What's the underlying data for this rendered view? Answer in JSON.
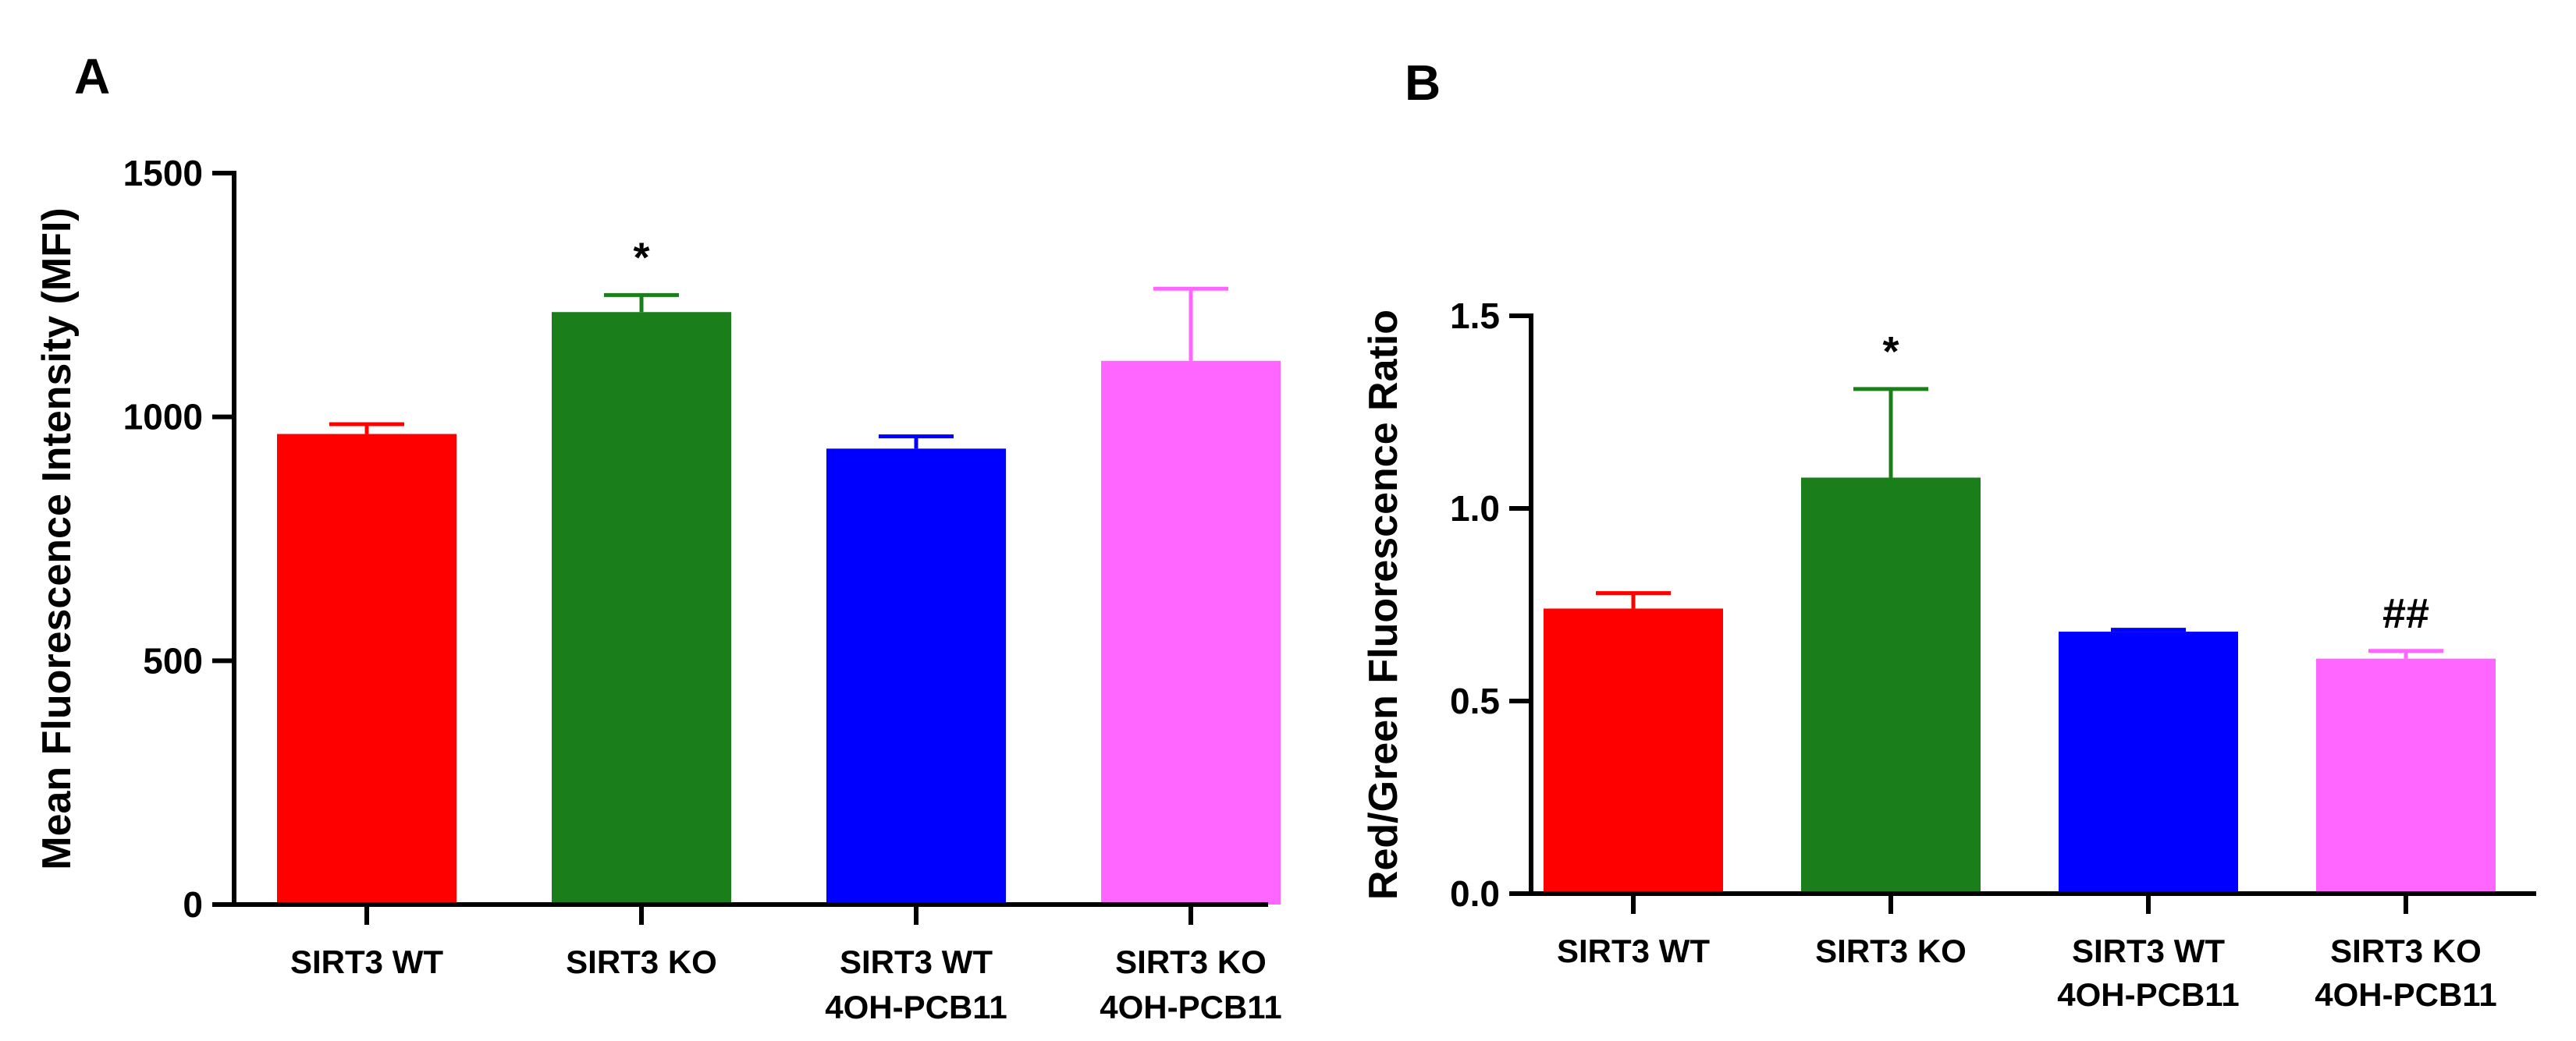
{
  "chart_data": [
    {
      "type": "bar",
      "panel_label": "A",
      "ylabel": "Mean Fluorescence Intensity (MFI)",
      "xlabel": "",
      "ylim": [
        0,
        1500
      ],
      "yticks": [
        "0",
        "500",
        "1000",
        "1500"
      ],
      "grid": false,
      "categories": [
        [
          "SIRT3 WT"
        ],
        [
          "SIRT3 KO"
        ],
        [
          "SIRT3 WT",
          "4OH-PCB11"
        ],
        [
          "SIRT3 KO",
          "4OH-PCB11"
        ]
      ],
      "values": [
        965,
        1215,
        935,
        1115
      ],
      "errors": [
        20,
        35,
        25,
        148
      ],
      "annotations": [
        "",
        "*",
        "",
        ""
      ],
      "colors": [
        "#ff0000",
        "#1a7f1a",
        "#0000ff",
        "#ff66ff"
      ]
    },
    {
      "type": "bar",
      "panel_label": "B",
      "ylabel": "Red/Green Fluorescence Ratio",
      "xlabel": "",
      "ylim": [
        0,
        1.5
      ],
      "yticks": [
        "0.0",
        "0.5",
        "1.0",
        "1.5"
      ],
      "grid": false,
      "categories": [
        [
          "SIRT3 WT"
        ],
        [
          "SIRT3 KO"
        ],
        [
          "SIRT3 WT",
          "4OH-PCB11"
        ],
        [
          "SIRT3 KO",
          "4OH-PCB11"
        ]
      ],
      "values": [
        0.74,
        1.08,
        0.68,
        0.61
      ],
      "errors": [
        0.04,
        0.23,
        0.005,
        0.02
      ],
      "annotations": [
        "",
        "*",
        "",
        "##"
      ],
      "colors": [
        "#ff0000",
        "#1a7f1a",
        "#0000ff",
        "#ff66ff"
      ]
    }
  ]
}
